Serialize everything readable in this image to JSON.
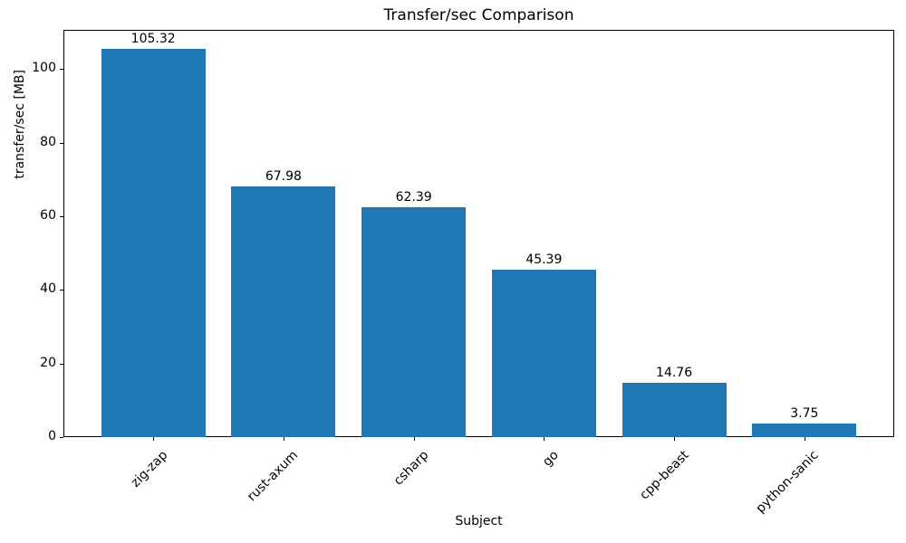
{
  "chart_data": {
    "type": "bar",
    "title": "Transfer/sec Comparison",
    "xlabel": "Subject",
    "ylabel": "transfer/sec [MB]",
    "categories": [
      "zig-zap",
      "rust-axum",
      "csharp",
      "go",
      "cpp-beast",
      "python-sanic"
    ],
    "values": [
      105.32,
      67.98,
      62.39,
      45.39,
      14.76,
      3.75
    ],
    "bar_labels": [
      "105.32",
      "67.98",
      "62.39",
      "45.39",
      "14.76",
      "3.75"
    ],
    "bar_color": "#1f77b4",
    "ylim": [
      0,
      110.6
    ],
    "yticks": [
      0,
      20,
      40,
      60,
      80,
      100
    ],
    "grid": false,
    "legend": "none",
    "x_tick_rotation": 45,
    "bar_width_fraction": 0.8
  }
}
